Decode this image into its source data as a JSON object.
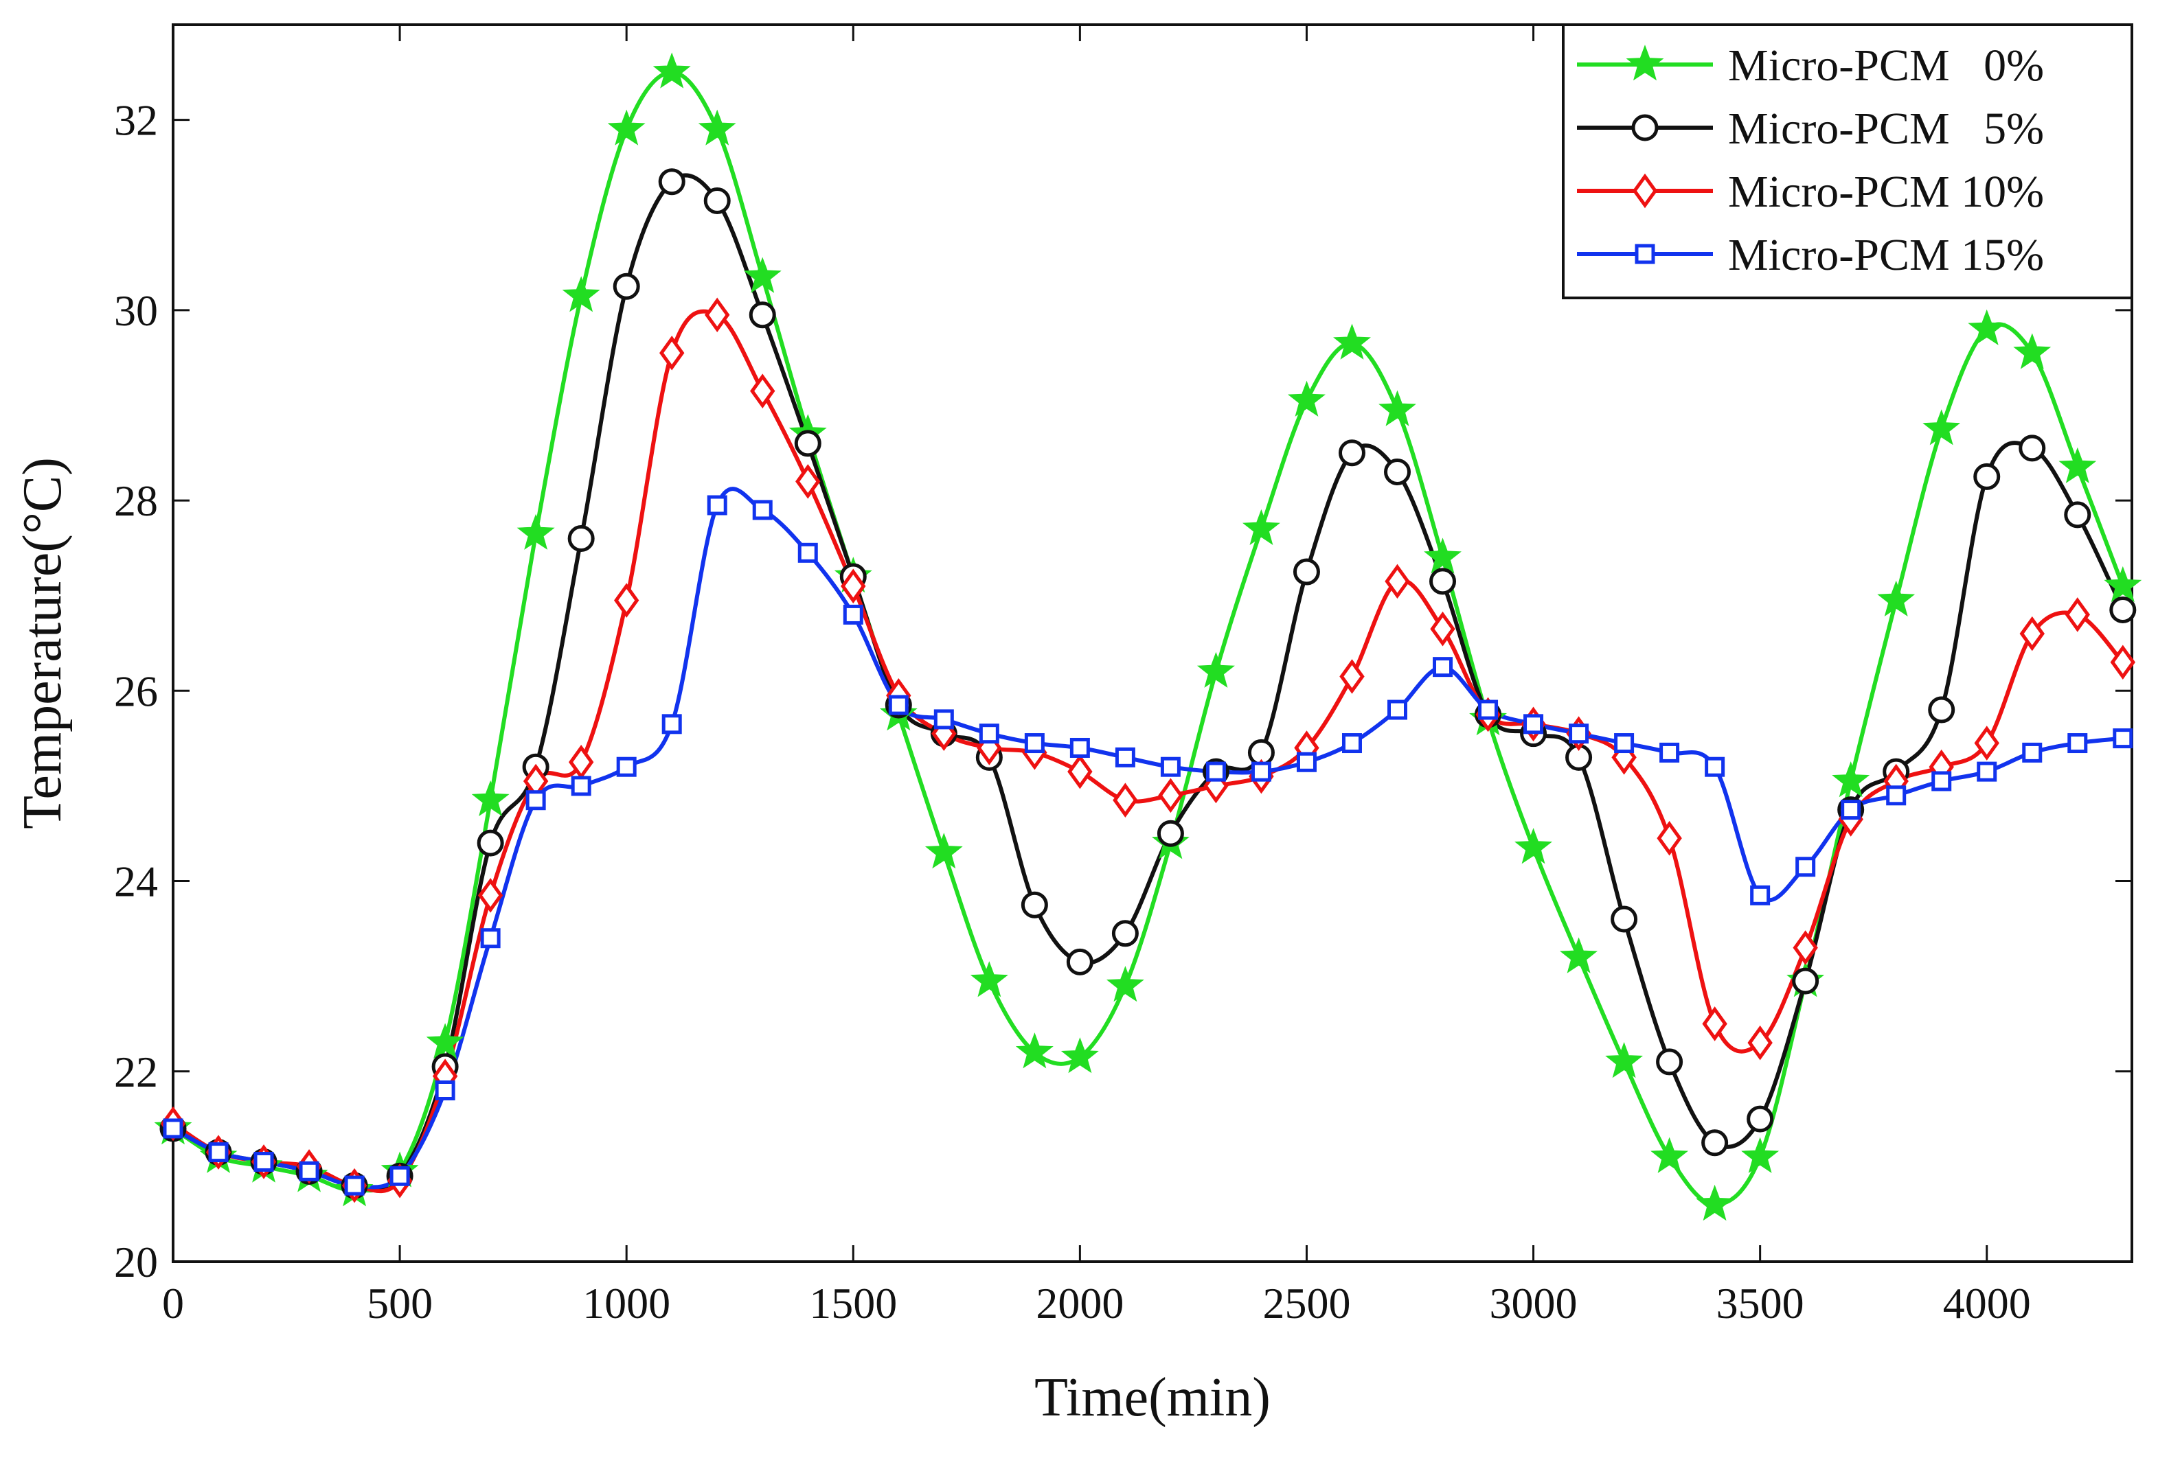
{
  "chart_data": {
    "type": "line",
    "title": "",
    "xlabel": "Time(min)",
    "ylabel": "Temperature(°C)",
    "xlim": [
      0,
      4320
    ],
    "ylim": [
      20,
      33
    ],
    "xticks": [
      0,
      500,
      1000,
      1500,
      2000,
      2500,
      3000,
      3500,
      4000
    ],
    "yticks": [
      20,
      22,
      24,
      26,
      28,
      30,
      32
    ],
    "grid": false,
    "legend_position": "top-right",
    "series": [
      {
        "name": "Micro-PCM   0%",
        "color": "#22dd22",
        "marker": "star",
        "x": [
          0,
          100,
          200,
          300,
          400,
          500,
          600,
          700,
          800,
          900,
          1000,
          1100,
          1200,
          1300,
          1400,
          1500,
          1600,
          1700,
          1800,
          1900,
          2000,
          2100,
          2200,
          2300,
          2400,
          2500,
          2600,
          2700,
          2800,
          2900,
          3000,
          3100,
          3200,
          3300,
          3400,
          3500,
          3600,
          3700,
          3800,
          3900,
          4000,
          4100,
          4200,
          4300
        ],
        "y": [
          21.4,
          21.1,
          21.0,
          20.9,
          20.75,
          20.95,
          22.3,
          24.85,
          27.65,
          30.15,
          31.9,
          32.5,
          31.9,
          30.35,
          28.7,
          27.2,
          25.75,
          24.3,
          22.95,
          22.2,
          22.15,
          22.9,
          24.4,
          26.2,
          27.7,
          29.05,
          29.65,
          28.95,
          27.4,
          25.7,
          24.35,
          23.2,
          22.1,
          21.1,
          20.6,
          21.1,
          22.95,
          25.05,
          26.95,
          28.75,
          29.8,
          29.55,
          28.35,
          27.1
        ]
      },
      {
        "name": "Micro-PCM   5%",
        "color": "#111111",
        "marker": "circle",
        "x": [
          0,
          100,
          200,
          300,
          400,
          500,
          600,
          700,
          800,
          900,
          1000,
          1100,
          1200,
          1300,
          1400,
          1500,
          1600,
          1700,
          1800,
          1900,
          2000,
          2100,
          2200,
          2300,
          2400,
          2500,
          2600,
          2700,
          2800,
          2900,
          3000,
          3100,
          3200,
          3300,
          3400,
          3500,
          3600,
          3700,
          3800,
          3900,
          4000,
          4100,
          4200,
          4300
        ],
        "y": [
          21.4,
          21.15,
          21.05,
          20.95,
          20.8,
          20.9,
          22.05,
          24.4,
          25.2,
          27.6,
          30.25,
          31.35,
          31.15,
          29.95,
          28.6,
          27.2,
          25.85,
          25.55,
          25.3,
          23.75,
          23.15,
          23.45,
          24.5,
          25.15,
          25.35,
          27.25,
          28.5,
          28.3,
          27.15,
          25.75,
          25.55,
          25.3,
          23.6,
          22.1,
          21.25,
          21.5,
          22.95,
          24.75,
          25.15,
          25.8,
          28.25,
          28.55,
          27.85,
          26.85
        ]
      },
      {
        "name": "Micro-PCM 10%",
        "color": "#ee1111",
        "marker": "diamond",
        "x": [
          0,
          100,
          200,
          300,
          400,
          500,
          600,
          700,
          800,
          900,
          1000,
          1100,
          1200,
          1300,
          1400,
          1500,
          1600,
          1700,
          1800,
          1900,
          2000,
          2100,
          2200,
          2300,
          2400,
          2500,
          2600,
          2700,
          2800,
          2900,
          3000,
          3100,
          3200,
          3300,
          3400,
          3500,
          3600,
          3700,
          3800,
          3900,
          4000,
          4100,
          4200,
          4300
        ],
        "y": [
          21.45,
          21.15,
          21.05,
          21.0,
          20.8,
          20.85,
          21.95,
          23.85,
          25.05,
          25.25,
          26.95,
          29.55,
          29.95,
          29.15,
          28.2,
          27.1,
          25.95,
          25.55,
          25.4,
          25.35,
          25.15,
          24.85,
          24.9,
          25.0,
          25.1,
          25.4,
          26.15,
          27.15,
          26.65,
          25.75,
          25.65,
          25.55,
          25.3,
          24.45,
          22.5,
          22.3,
          23.3,
          24.65,
          25.05,
          25.2,
          25.45,
          26.6,
          26.8,
          26.3
        ]
      },
      {
        "name": "Micro-PCM 15%",
        "color": "#1133ee",
        "marker": "square",
        "x": [
          0,
          100,
          200,
          300,
          400,
          500,
          600,
          700,
          800,
          900,
          1000,
          1100,
          1200,
          1300,
          1400,
          1500,
          1600,
          1700,
          1800,
          1900,
          2000,
          2100,
          2200,
          2300,
          2400,
          2500,
          2600,
          2700,
          2800,
          2900,
          3000,
          3100,
          3200,
          3300,
          3400,
          3500,
          3600,
          3700,
          3800,
          3900,
          4000,
          4100,
          4200,
          4300
        ],
        "y": [
          21.4,
          21.15,
          21.05,
          20.95,
          20.8,
          20.9,
          21.8,
          23.4,
          24.85,
          25.0,
          25.2,
          25.65,
          27.95,
          27.9,
          27.45,
          26.8,
          25.85,
          25.7,
          25.55,
          25.45,
          25.4,
          25.3,
          25.2,
          25.15,
          25.15,
          25.25,
          25.45,
          25.8,
          26.25,
          25.8,
          25.65,
          25.55,
          25.45,
          25.35,
          25.2,
          23.85,
          24.15,
          24.75,
          24.9,
          25.05,
          25.15,
          25.35,
          25.45,
          25.5
        ]
      }
    ]
  }
}
